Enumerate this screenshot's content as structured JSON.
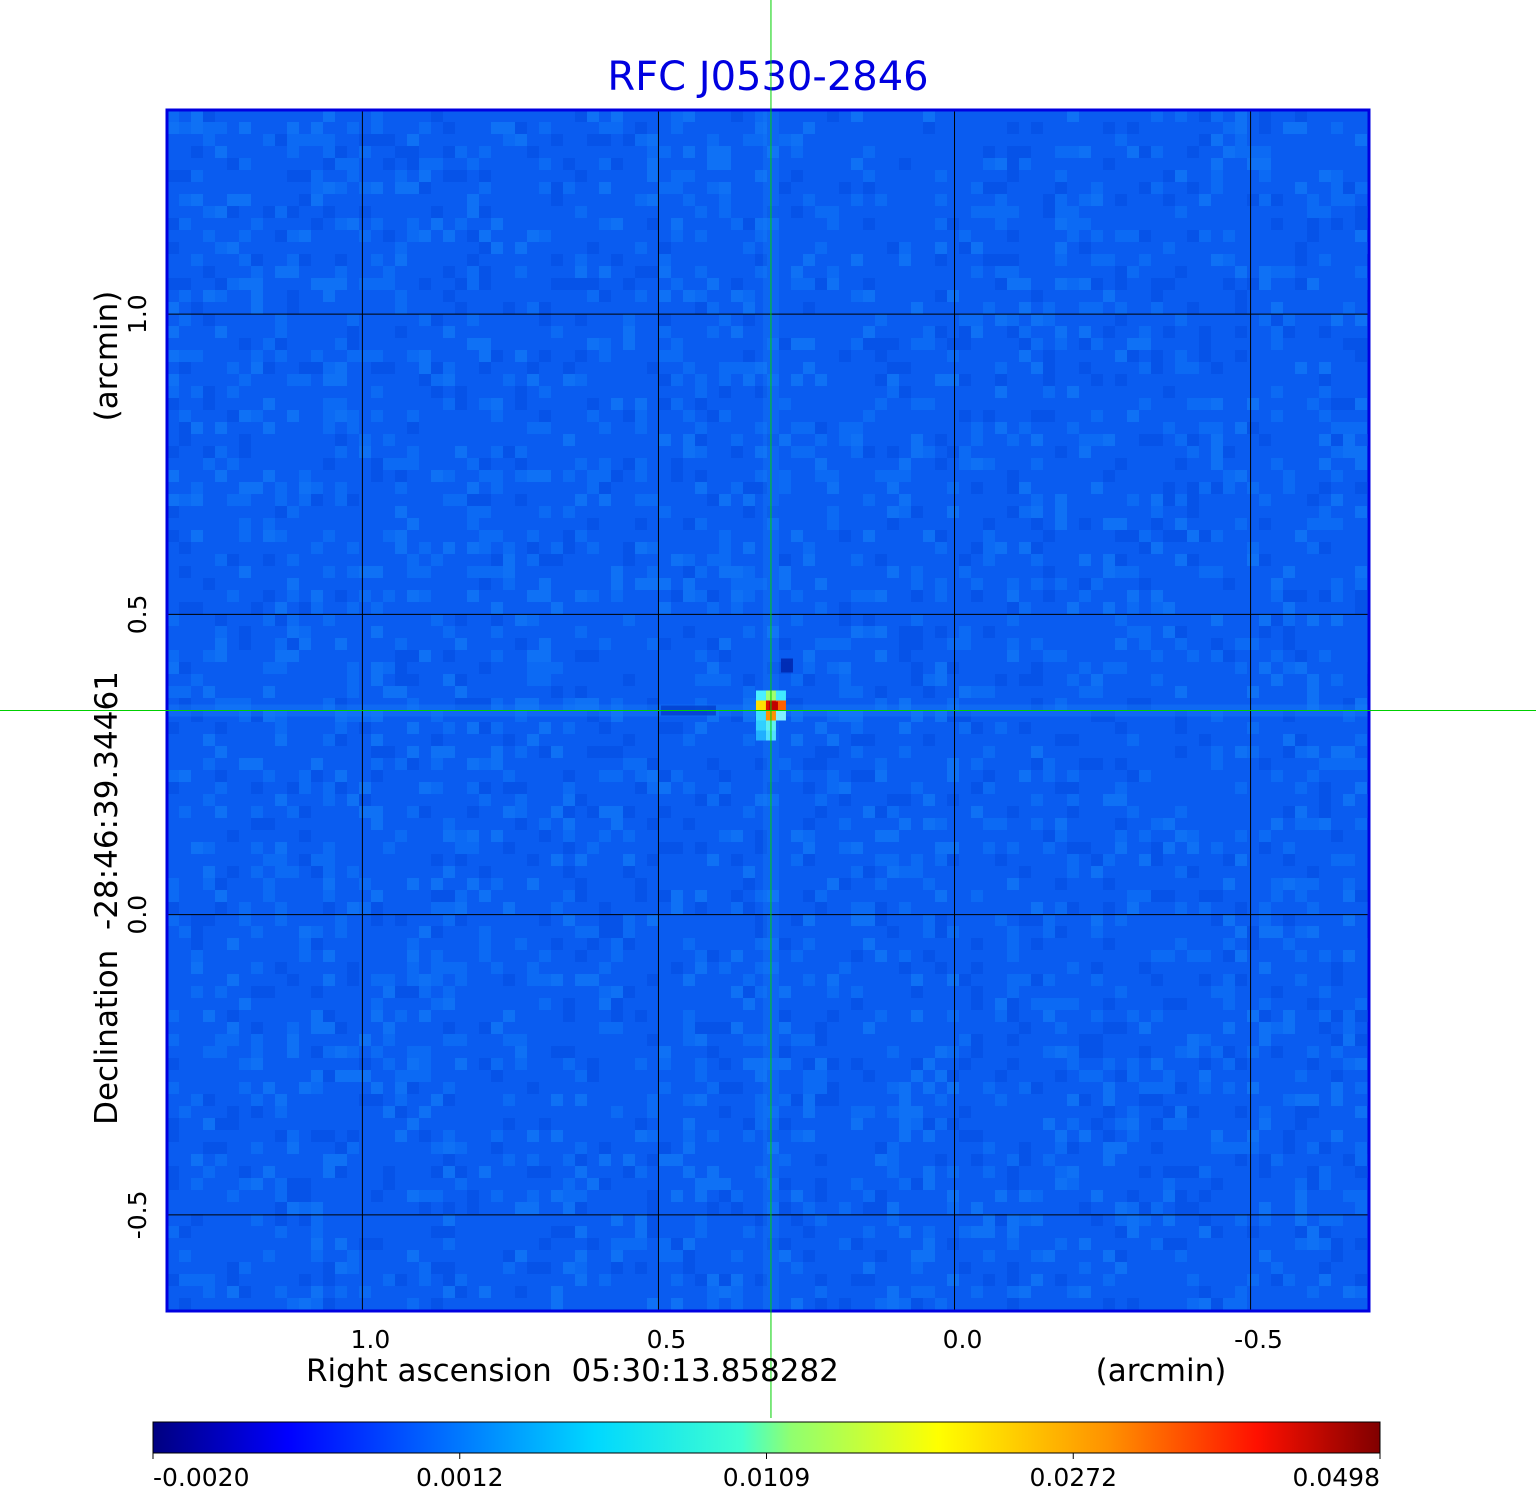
{
  "chart_data": {
    "type": "heatmap",
    "title": "RFC J0530-2846",
    "xlabel": "Right ascension  05:30:13.858282",
    "xunit": "(arcmin)",
    "ylabel": "Declination  -28:46:39.34461",
    "yunit": "(arcmin)",
    "x_ticks": [
      "1.0",
      "0.5",
      "0.0",
      "-0.5"
    ],
    "x_tick_values": [
      1.0,
      0.5,
      0.0,
      -0.5
    ],
    "y_ticks": [
      "1.0",
      "0.5",
      "0.0",
      "-0.5"
    ],
    "y_tick_values": [
      1.0,
      0.5,
      0.0,
      -0.5
    ],
    "xlim": [
      1.33,
      -0.7
    ],
    "ylim": [
      -0.66,
      1.34
    ],
    "grid": true,
    "crosshair": {
      "x": 0.31,
      "y": 0.34
    },
    "source_peak": {
      "x": 0.31,
      "y": 0.34,
      "value": 0.0498
    },
    "colorbar": {
      "ticks": [
        "-0.0020",
        "0.0012",
        "0.0109",
        "0.0272",
        "0.0498"
      ],
      "tick_values": [
        -0.002,
        0.0012,
        0.0109,
        0.0272,
        0.0498
      ],
      "colormap": "jet"
    },
    "colors": {
      "background_field": "#0a5cf0",
      "frame": "#0000e0",
      "crosshair": "#00d000",
      "grid": "#000000"
    }
  }
}
